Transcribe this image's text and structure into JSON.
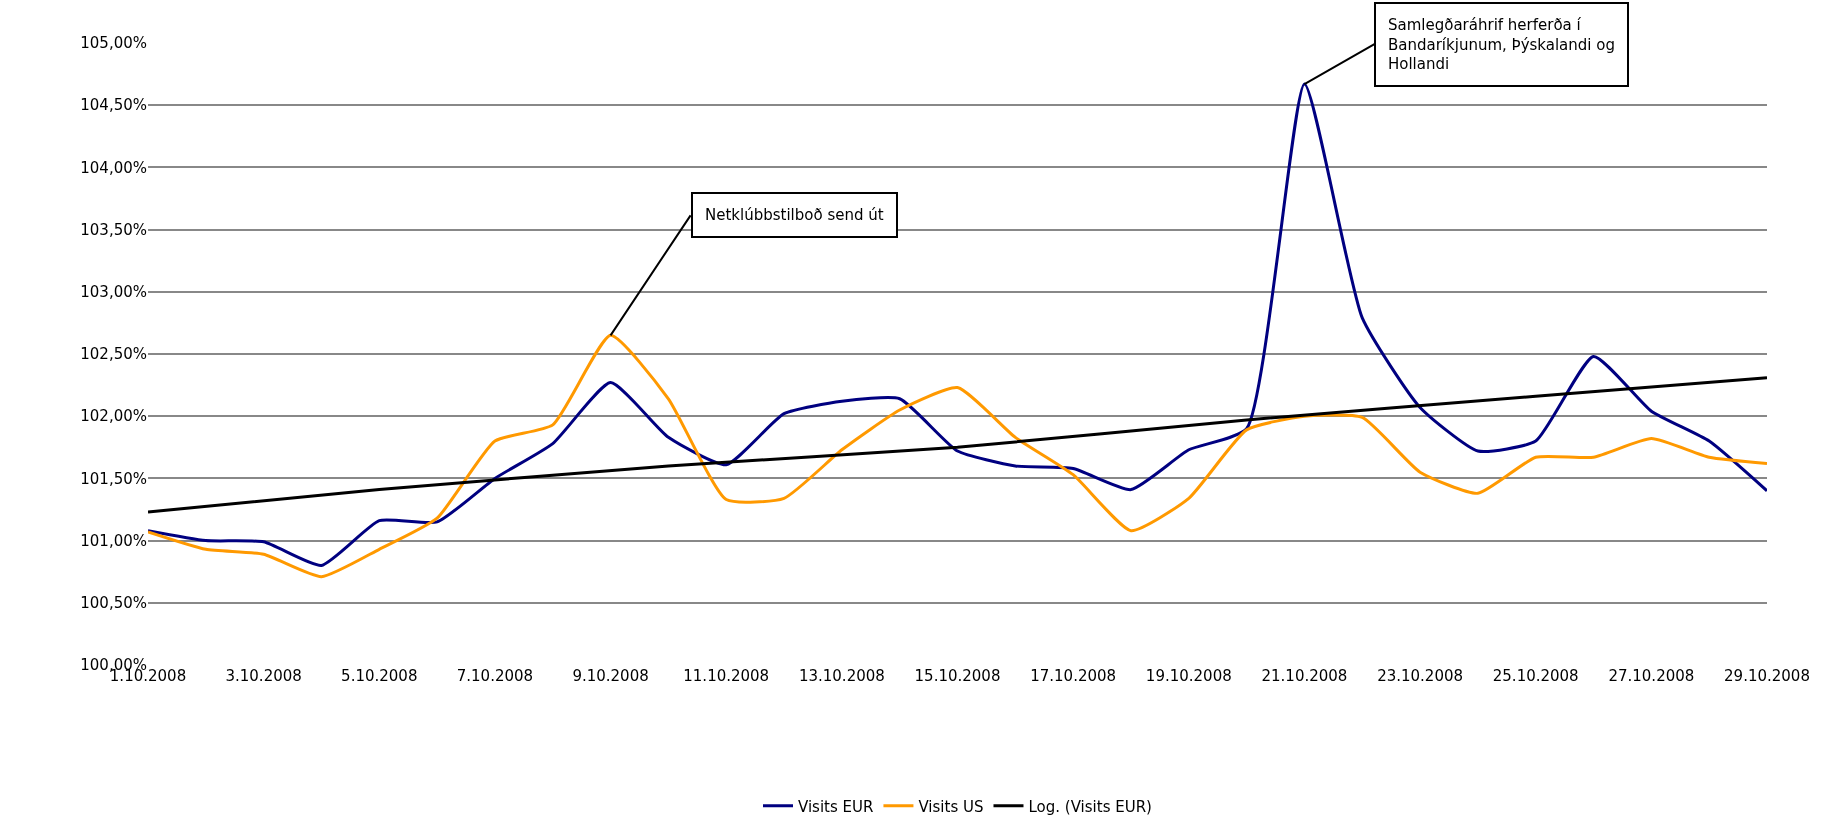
{
  "chart_data": {
    "type": "line",
    "x": [
      "2008-10-01",
      "2008-10-02",
      "2008-10-03",
      "2008-10-04",
      "2008-10-05",
      "2008-10-06",
      "2008-10-07",
      "2008-10-08",
      "2008-10-09",
      "2008-10-10",
      "2008-10-11",
      "2008-10-12",
      "2008-10-13",
      "2008-10-14",
      "2008-10-15",
      "2008-10-16",
      "2008-10-17",
      "2008-10-18",
      "2008-10-19",
      "2008-10-20",
      "2008-10-21",
      "2008-10-22",
      "2008-10-23",
      "2008-10-24",
      "2008-10-25",
      "2008-10-26",
      "2008-10-27",
      "2008-10-28",
      "2008-10-29"
    ],
    "series": [
      {
        "name": "Visits EUR",
        "color": "#000080",
        "values": [
          101.08,
          101.0,
          100.99,
          100.8,
          101.16,
          101.15,
          101.5,
          101.78,
          102.27,
          101.83,
          101.61,
          102.02,
          102.12,
          102.14,
          101.72,
          101.6,
          101.58,
          101.41,
          101.73,
          101.9,
          104.67,
          102.79,
          102.07,
          101.72,
          101.8,
          102.48,
          102.04,
          101.8,
          101.4
        ]
      },
      {
        "name": "Visits US",
        "color": "#ff9900",
        "values": [
          101.07,
          100.93,
          100.89,
          100.71,
          100.93,
          101.18,
          101.8,
          101.93,
          102.65,
          102.14,
          101.33,
          101.34,
          101.73,
          102.05,
          102.23,
          101.83,
          101.53,
          101.08,
          101.34,
          101.89,
          102.0,
          101.99,
          101.55,
          101.38,
          101.67,
          101.67,
          101.82,
          101.67,
          101.62
        ]
      },
      {
        "name": "Log. (Visits EUR)",
        "color": "#000000",
        "x": [
          "2008-10-01",
          "2008-10-05",
          "2008-10-10",
          "2008-10-15",
          "2008-10-20",
          "2008-10-25",
          "2008-10-29"
        ],
        "values": [
          101.23,
          101.41,
          101.6,
          101.75,
          101.97,
          102.16,
          102.31
        ]
      }
    ],
    "xlim": [
      "2008-10-01",
      "2008-10-29"
    ],
    "xticks": [
      {
        "value": "2008-10-01",
        "label": "1.10.2008"
      },
      {
        "value": "2008-10-03",
        "label": "3.10.2008"
      },
      {
        "value": "2008-10-05",
        "label": "5.10.2008"
      },
      {
        "value": "2008-10-07",
        "label": "7.10.2008"
      },
      {
        "value": "2008-10-09",
        "label": "9.10.2008"
      },
      {
        "value": "2008-10-11",
        "label": "11.10.2008"
      },
      {
        "value": "2008-10-13",
        "label": "13.10.2008"
      },
      {
        "value": "2008-10-15",
        "label": "15.10.2008"
      },
      {
        "value": "2008-10-17",
        "label": "17.10.2008"
      },
      {
        "value": "2008-10-19",
        "label": "19.10.2008"
      },
      {
        "value": "2008-10-21",
        "label": "21.10.2008"
      },
      {
        "value": "2008-10-23",
        "label": "23.10.2008"
      },
      {
        "value": "2008-10-25",
        "label": "25.10.2008"
      },
      {
        "value": "2008-10-27",
        "label": "27.10.2008"
      },
      {
        "value": "2008-10-29",
        "label": "29.10.2008"
      }
    ],
    "ylim": [
      100,
      105
    ],
    "yticks": [
      {
        "value": 100,
        "label": "100,00%"
      },
      {
        "value": 100.5,
        "label": "100,50%"
      },
      {
        "value": 101,
        "label": "101,00%"
      },
      {
        "value": 101.5,
        "label": "101,50%"
      },
      {
        "value": 102,
        "label": "102,00%"
      },
      {
        "value": 102.5,
        "label": "102,50%"
      },
      {
        "value": 103,
        "label": "103,00%"
      },
      {
        "value": 103.5,
        "label": "103,50%"
      },
      {
        "value": 104,
        "label": "104,00%"
      },
      {
        "value": 104.5,
        "label": "104,50%"
      },
      {
        "value": 105,
        "label": "105,00%"
      }
    ],
    "annotations": [
      {
        "text": "Netklúbbstilboð send út",
        "x": "2008-10-09",
        "y": 102.65
      },
      {
        "text": "Samlegðaráhrif herferða í Bandaríkjunum, Þýskalandi og Hollandi",
        "x": "2008-10-21",
        "y": 104.67
      }
    ],
    "grid": "y",
    "legend": "bottom",
    "marker": "none",
    "line_style": "solid"
  }
}
